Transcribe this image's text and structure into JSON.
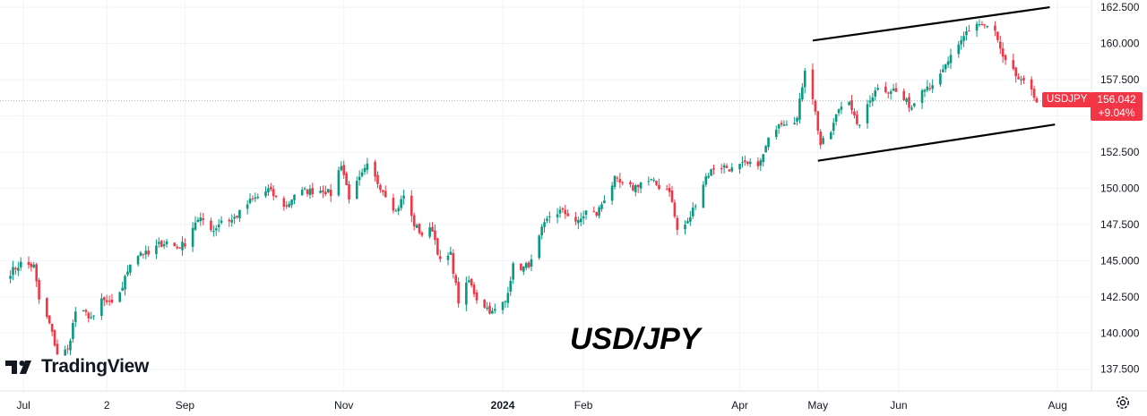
{
  "chart_data": {
    "type": "candlestick",
    "symbol": "USDJPY",
    "watermark": "USD/JPY",
    "brand": "TradingView",
    "last_price": "156.042",
    "change": "+9.04%",
    "ylim": [
      136.0,
      163.0
    ],
    "y_ticks": [
      "162.500",
      "160.000",
      "157.500",
      "155.000",
      "152.500",
      "150.000",
      "147.500",
      "145.000",
      "142.500",
      "140.000",
      "137.500"
    ],
    "x_ticks": [
      "Jul",
      "2",
      "Sep",
      "Nov",
      "2024",
      "Feb",
      "Apr",
      "May",
      "Jun",
      "Aug"
    ],
    "price_line": 156.042,
    "colors": {
      "up": "#089981",
      "down": "#f23645",
      "trendline": "#000000",
      "tag": "#f23645"
    },
    "daily_close": {
      "2023-06-26": 144.2,
      "2023-06-30": 144.8,
      "2023-07-05": 144.6,
      "2023-07-07": 142.3,
      "2023-07-11": 140.6,
      "2023-07-14": 138.6,
      "2023-07-18": 138.8,
      "2023-07-21": 141.5,
      "2023-07-25": 141.3,
      "2023-07-28": 141.0,
      "2023-07-31": 142.3,
      "2023-08-04": 141.9,
      "2023-08-08": 143.2,
      "2023-08-11": 144.9,
      "2023-08-15": 145.6,
      "2023-08-18": 145.4,
      "2023-08-22": 146.1,
      "2023-08-25": 146.3,
      "2023-08-29": 145.9,
      "2023-09-01": 146.2,
      "2023-09-05": 147.7,
      "2023-09-08": 147.8,
      "2023-09-12": 147.1,
      "2023-09-15": 147.8,
      "2023-09-19": 147.8,
      "2023-09-22": 148.3,
      "2023-09-26": 149.1,
      "2023-09-29": 149.4,
      "2023-10-03": 149.9,
      "2023-10-06": 149.3,
      "2023-10-10": 148.7,
      "2023-10-13": 149.6,
      "2023-10-17": 149.8,
      "2023-10-20": 149.8,
      "2023-10-24": 149.9,
      "2023-10-27": 149.6,
      "2023-10-31": 151.7,
      "2023-11-03": 149.4,
      "2023-11-07": 150.6,
      "2023-11-10": 151.5,
      "2023-11-14": 150.4,
      "2023-11-17": 149.6,
      "2023-11-21": 148.4,
      "2023-11-24": 149.5,
      "2023-11-28": 147.5,
      "2023-12-01": 146.8,
      "2023-12-05": 147.2,
      "2023-12-08": 144.9,
      "2023-12-12": 145.4,
      "2023-12-15": 142.2,
      "2023-12-19": 143.6,
      "2023-12-22": 142.4,
      "2023-12-28": 141.4,
      "2024-01-02": 142.2,
      "2024-01-05": 144.6,
      "2024-01-09": 144.5,
      "2024-01-12": 144.9,
      "2024-01-16": 147.1,
      "2024-01-19": 148.1,
      "2024-01-23": 148.4,
      "2024-01-26": 148.2,
      "2024-01-30": 147.6,
      "2024-02-02": 148.4,
      "2024-02-06": 148.2,
      "2024-02-09": 149.3,
      "2024-02-13": 150.6,
      "2024-02-16": 150.2,
      "2024-02-20": 150.0,
      "2024-02-23": 150.4,
      "2024-02-27": 150.5,
      "2024-03-01": 150.1,
      "2024-03-05": 149.9,
      "2024-03-08": 147.1,
      "2024-03-12": 147.6,
      "2024-03-15": 149.0,
      "2024-03-19": 150.8,
      "2024-03-22": 151.4,
      "2024-03-26": 151.5,
      "2024-03-29": 151.3,
      "2024-04-02": 151.6,
      "2024-04-05": 151.6,
      "2024-04-09": 151.8,
      "2024-04-12": 153.3,
      "2024-04-16": 154.6,
      "2024-04-19": 154.6,
      "2024-04-23": 154.8,
      "2024-04-26": 158.3,
      "2024-04-29": 156.3,
      "2024-05-02": 153.0,
      "2024-05-06": 153.9,
      "2024-05-09": 155.5,
      "2024-05-13": 156.2,
      "2024-05-16": 154.2,
      "2024-05-20": 155.6,
      "2024-05-23": 156.9,
      "2024-05-27": 156.8,
      "2024-05-30": 156.8,
      "2024-06-03": 156.1,
      "2024-06-06": 155.6,
      "2024-06-10": 157.0,
      "2024-06-13": 157.1,
      "2024-06-17": 157.7,
      "2024-06-20": 158.8,
      "2024-06-24": 159.7,
      "2024-06-27": 160.8,
      "2024-07-01": 161.4,
      "2024-07-04": 161.2,
      "2024-07-08": 160.8,
      "2024-07-11": 158.9,
      "2024-07-15": 158.0,
      "2024-07-18": 157.3,
      "2024-07-22": 156.9,
      "2024-07-24": 156.0
    },
    "trendlines": [
      {
        "from": {
          "date": "2024-04-29",
          "price": 160.2
        },
        "to": {
          "date": "2024-07-29",
          "price": 162.5
        }
      },
      {
        "from": {
          "date": "2024-05-01",
          "price": 151.9
        },
        "to": {
          "date": "2024-07-31",
          "price": 154.4
        }
      }
    ]
  }
}
